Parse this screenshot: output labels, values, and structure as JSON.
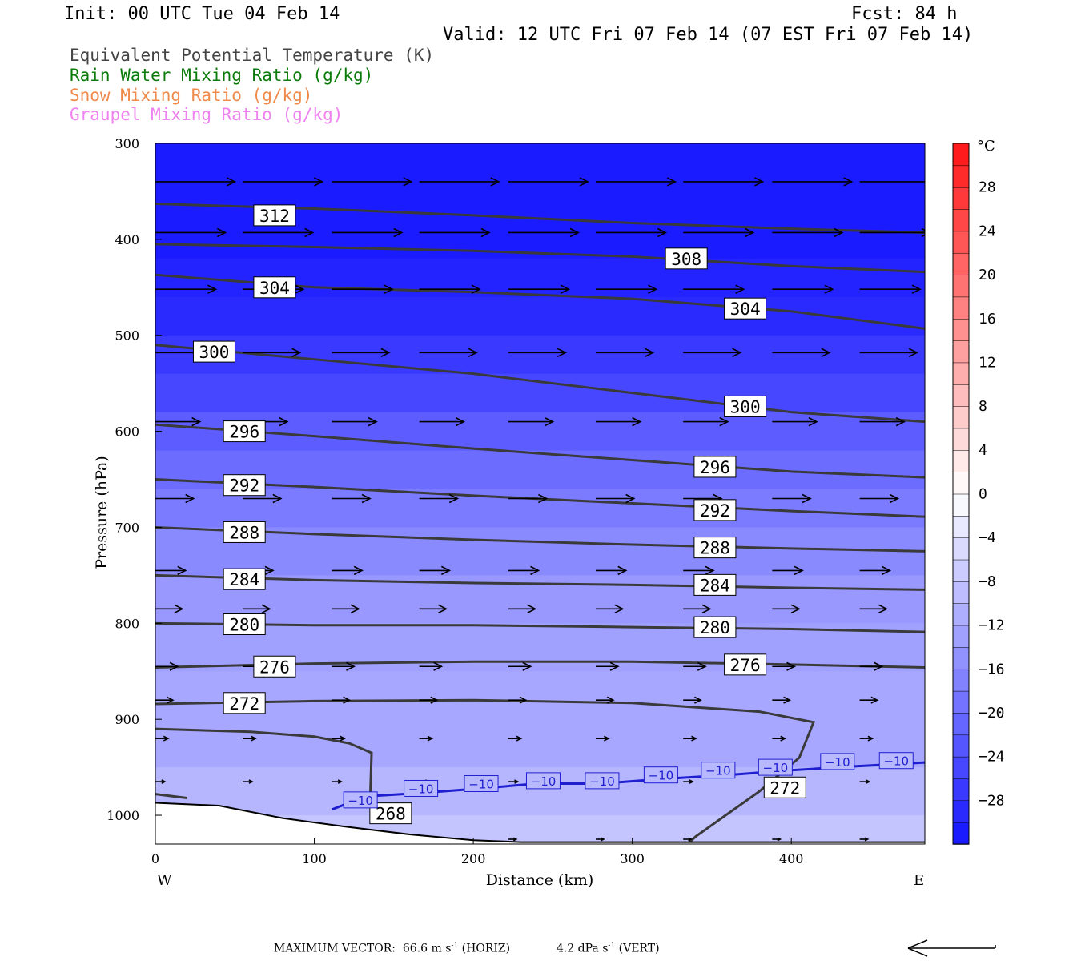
{
  "header": {
    "init": "Init: 00 UTC Tue 04 Feb 14",
    "fcst": "Fcst:   84 h",
    "valid": "Valid: 12 UTC Fri 07 Feb 14 (07 EST Fri 07 Feb 14)"
  },
  "legend": [
    {
      "label": "Equivalent Potential Temperature (K)",
      "color": "#444444"
    },
    {
      "label": "Rain Water Mixing Ratio (g/kg)",
      "color": "#0a7a0a"
    },
    {
      "label": "Snow Mixing Ratio (g/kg)",
      "color": "#f08a4b"
    },
    {
      "label": "Graupel Mixing Ratio (g/kg)",
      "color": "#ee82ee"
    }
  ],
  "footer": {
    "prefix": "MAXIMUM VECTOR:",
    "horiz_value": "66.6",
    "horiz_unit": "m s",
    "horiz_tag": "(HORIZ)",
    "vert_value": "4.2",
    "vert_unit": "dPa s",
    "vert_tag": "(VERT)",
    "exponent": "-1"
  },
  "chart_data": {
    "type": "cross-section",
    "xlabel": "Distance (km)",
    "ylabel": "Pressure (hPa)",
    "x_ticks": [
      0,
      100,
      200,
      300,
      400
    ],
    "y_ticks": [
      300,
      400,
      500,
      600,
      700,
      800,
      900,
      1000
    ],
    "xlim": [
      0,
      484
    ],
    "ylim": [
      300,
      1030
    ],
    "x_end_labels": {
      "left": "W",
      "right": "E"
    },
    "colorbar": {
      "unit": "°C",
      "labels": [
        28,
        24,
        20,
        16,
        12,
        8,
        4,
        0,
        -4,
        -8,
        -12,
        -16,
        -20,
        -24,
        -28
      ],
      "range": [
        -32,
        32
      ],
      "step": 2
    },
    "temperature_fill_bands": [
      {
        "p": 300,
        "temp_c": -31
      },
      {
        "p": 360,
        "temp_c": -31
      },
      {
        "p": 420,
        "temp_c": -30
      },
      {
        "p": 460,
        "temp_c": -29
      },
      {
        "p": 500,
        "temp_c": -27
      },
      {
        "p": 540,
        "temp_c": -25
      },
      {
        "p": 580,
        "temp_c": -22
      },
      {
        "p": 620,
        "temp_c": -20
      },
      {
        "p": 660,
        "temp_c": -18
      },
      {
        "p": 700,
        "temp_c": -16
      },
      {
        "p": 750,
        "temp_c": -14
      },
      {
        "p": 800,
        "temp_c": -13
      },
      {
        "p": 850,
        "temp_c": -12
      },
      {
        "p": 900,
        "temp_c": -12
      },
      {
        "p": 950,
        "temp_c": -10
      },
      {
        "p": 1000,
        "temp_c": -8
      },
      {
        "p": 1030,
        "temp_c": -7
      }
    ],
    "theta_e_contours": [
      {
        "level": 312,
        "points": [
          [
            0,
            363
          ],
          [
            100,
            368
          ],
          [
            200,
            375
          ],
          [
            300,
            383
          ],
          [
            400,
            389
          ],
          [
            484,
            393
          ]
        ],
        "labels": [
          [
            75,
            375
          ]
        ]
      },
      {
        "level": 308,
        "points": [
          [
            0,
            405
          ],
          [
            100,
            408
          ],
          [
            200,
            412
          ],
          [
            300,
            418
          ],
          [
            400,
            428
          ],
          [
            484,
            434
          ]
        ],
        "labels": [
          [
            334,
            420
          ]
        ]
      },
      {
        "level": 304,
        "points": [
          [
            0,
            437
          ],
          [
            100,
            450
          ],
          [
            200,
            455
          ],
          [
            300,
            462
          ],
          [
            400,
            475
          ],
          [
            484,
            493
          ]
        ],
        "labels": [
          [
            75,
            450
          ],
          [
            371,
            472
          ]
        ]
      },
      {
        "level": 300,
        "points": [
          [
            0,
            510
          ],
          [
            100,
            525
          ],
          [
            200,
            540
          ],
          [
            300,
            560
          ],
          [
            400,
            580
          ],
          [
            484,
            590
          ]
        ],
        "labels": [
          [
            37,
            517
          ],
          [
            371,
            574
          ]
        ]
      },
      {
        "level": 296,
        "points": [
          [
            0,
            593
          ],
          [
            100,
            605
          ],
          [
            200,
            618
          ],
          [
            300,
            630
          ],
          [
            400,
            642
          ],
          [
            484,
            648
          ]
        ],
        "labels": [
          [
            56,
            600
          ],
          [
            352,
            637
          ]
        ]
      },
      {
        "level": 292,
        "points": [
          [
            0,
            650
          ],
          [
            100,
            658
          ],
          [
            200,
            667
          ],
          [
            300,
            675
          ],
          [
            400,
            683
          ],
          [
            484,
            689
          ]
        ],
        "labels": [
          [
            56,
            656
          ],
          [
            352,
            682
          ]
        ]
      },
      {
        "level": 288,
        "points": [
          [
            0,
            700
          ],
          [
            100,
            707
          ],
          [
            200,
            713
          ],
          [
            300,
            718
          ],
          [
            400,
            722
          ],
          [
            484,
            725
          ]
        ],
        "labels": [
          [
            56,
            705
          ],
          [
            352,
            721
          ]
        ]
      },
      {
        "level": 284,
        "points": [
          [
            0,
            750
          ],
          [
            100,
            755
          ],
          [
            200,
            758
          ],
          [
            300,
            760
          ],
          [
            400,
            763
          ],
          [
            484,
            765
          ]
        ],
        "labels": [
          [
            56,
            754
          ],
          [
            352,
            760
          ]
        ]
      },
      {
        "level": 280,
        "points": [
          [
            0,
            800
          ],
          [
            100,
            802
          ],
          [
            200,
            802
          ],
          [
            300,
            804
          ],
          [
            400,
            806
          ],
          [
            484,
            809
          ]
        ],
        "labels": [
          [
            56,
            801
          ],
          [
            352,
            804
          ]
        ]
      },
      {
        "level": 276,
        "points": [
          [
            0,
            846
          ],
          [
            100,
            842
          ],
          [
            200,
            840
          ],
          [
            300,
            840
          ],
          [
            400,
            843
          ],
          [
            484,
            846
          ]
        ],
        "labels": [
          [
            75,
            845
          ],
          [
            371,
            843
          ]
        ]
      },
      {
        "level": 272,
        "points": [
          [
            0,
            884
          ],
          [
            100,
            881
          ],
          [
            200,
            880
          ],
          [
            300,
            883
          ],
          [
            380,
            892
          ],
          [
            414,
            903
          ],
          [
            405,
            940
          ],
          [
            380,
            975
          ],
          [
            340,
            1022
          ],
          [
            336,
            1028
          ]
        ],
        "labels": [
          [
            56,
            883
          ],
          [
            396,
            971
          ]
        ]
      },
      {
        "level": 268,
        "points": [
          [
            0,
            910
          ],
          [
            60,
            913
          ],
          [
            100,
            918
          ],
          [
            122,
            925
          ],
          [
            136,
            935
          ],
          [
            135,
            990
          ]
        ],
        "labels": [
          [
            148,
            998
          ]
        ]
      },
      {
        "level": 268,
        "points": [
          [
            0,
            978
          ],
          [
            20,
            982
          ]
        ],
        "labels": []
      }
    ],
    "temperature_isotherm": {
      "level": -10,
      "color": "#1f1fd0",
      "points": [
        [
          111,
          994
        ],
        [
          125,
          985
        ],
        [
          135,
          980
        ],
        [
          165,
          977
        ],
        [
          205,
          972
        ],
        [
          240,
          967
        ],
        [
          280,
          967
        ],
        [
          320,
          962
        ],
        [
          360,
          958
        ],
        [
          400,
          953
        ],
        [
          440,
          949
        ],
        [
          484,
          945
        ]
      ],
      "labels": [
        [
          129,
          984
        ],
        [
          167,
          972
        ],
        [
          205,
          967
        ],
        [
          244,
          964
        ],
        [
          281,
          964
        ],
        [
          318,
          958
        ],
        [
          354,
          953
        ],
        [
          390,
          950
        ],
        [
          429,
          944
        ],
        [
          466,
          943
        ]
      ]
    },
    "terrain": [
      [
        0,
        987
      ],
      [
        40,
        990
      ],
      [
        80,
        1003
      ],
      [
        120,
        1012
      ],
      [
        160,
        1020
      ],
      [
        200,
        1026
      ],
      [
        230,
        1028
      ],
      [
        300,
        1028
      ],
      [
        484,
        1028
      ]
    ],
    "wind_arrows": [
      {
        "p": 340,
        "xs": [
          0,
          55,
          111,
          166,
          222,
          277,
          332,
          388,
          443
        ],
        "len_km": 50
      },
      {
        "p": 393,
        "xs": [
          0,
          55,
          111,
          166,
          222,
          277,
          332,
          388,
          443
        ],
        "len_km": 44
      },
      {
        "p": 452,
        "xs": [
          0,
          55,
          111,
          166,
          222,
          277,
          332,
          388,
          443
        ],
        "len_km": 38
      },
      {
        "p": 518,
        "xs": [
          0,
          55,
          111,
          166,
          222,
          277,
          332,
          388,
          443
        ],
        "len_km": 36
      },
      {
        "p": 590,
        "xs": [
          0,
          55,
          111,
          166,
          222,
          277,
          332,
          388,
          443
        ],
        "len_km": 28
      },
      {
        "p": 670,
        "xs": [
          0,
          55,
          111,
          166,
          222,
          277,
          332,
          388,
          443
        ],
        "len_km": 24
      },
      {
        "p": 745,
        "xs": [
          0,
          55,
          111,
          166,
          222,
          277,
          332,
          388,
          443
        ],
        "len_km": 19
      },
      {
        "p": 785,
        "xs": [
          0,
          55,
          111,
          166,
          222,
          277,
          332,
          388,
          443
        ],
        "len_km": 17
      },
      {
        "p": 845,
        "xs": [
          0,
          55,
          111,
          166,
          222,
          277,
          332,
          388,
          443
        ],
        "len_km": 14
      },
      {
        "p": 880,
        "xs": [
          0,
          55,
          111,
          166,
          222,
          277,
          332,
          388,
          443
        ],
        "len_km": 11
      },
      {
        "p": 920,
        "xs": [
          0,
          55,
          111,
          166,
          222,
          277,
          332,
          388,
          443
        ],
        "len_km": 8
      },
      {
        "p": 965,
        "xs": [
          0,
          55,
          111,
          166,
          222,
          277,
          332,
          388,
          443
        ],
        "len_km": 6
      },
      {
        "p": 1025,
        "xs": [
          0,
          55,
          111,
          166,
          222,
          277,
          332,
          388,
          443
        ],
        "len_km": 5
      }
    ]
  }
}
